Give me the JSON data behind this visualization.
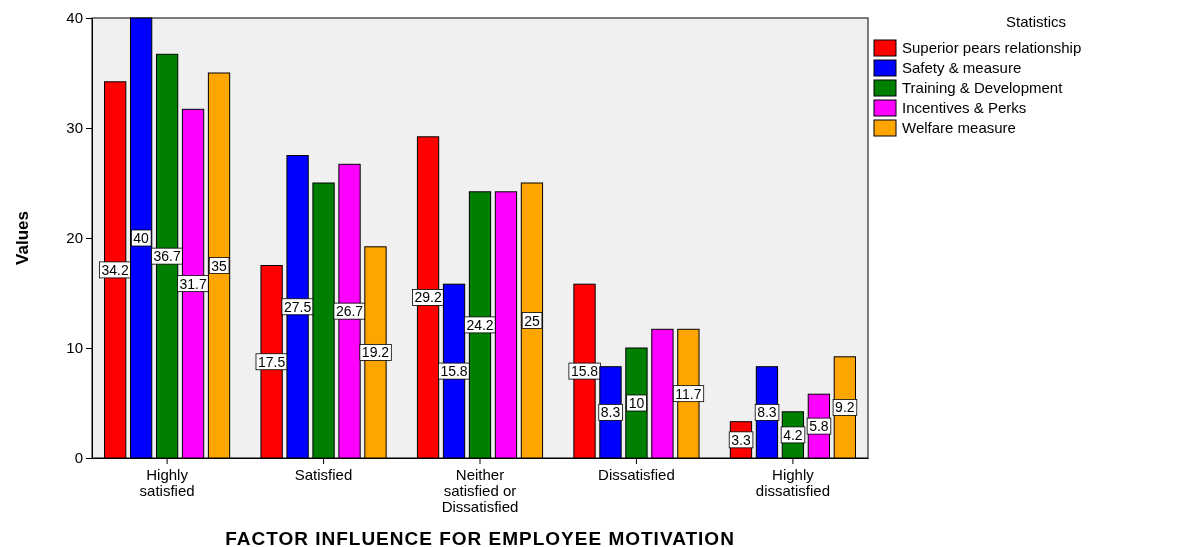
{
  "chart_data": {
    "type": "bar",
    "xlabel": "FACTOR INFLUENCE FOR EMPLOYEE MOTIVATION",
    "ylabel": "Values",
    "legend_title": "Statistics",
    "categories": [
      "Highly satisfied",
      "Satisfied",
      "Neither satisfied or Dissatisfied",
      "Dissatisfied",
      "Highly dissatisfied"
    ],
    "series": [
      {
        "name": "Superior pears relationship",
        "color": "#ff0000",
        "values": [
          34.2,
          17.5,
          29.2,
          15.8,
          3.3
        ],
        "value_labels": [
          "34.2",
          "17.5",
          "29.2",
          "15.8",
          "3.3"
        ]
      },
      {
        "name": "Safety & measure",
        "color": "#0000ff",
        "values": [
          40,
          27.5,
          15.8,
          8.3,
          8.3
        ],
        "value_labels": [
          "40",
          "27.5",
          "15.8",
          "8.3",
          "8.3"
        ]
      },
      {
        "name": "Training & Development",
        "color": "#008000",
        "values": [
          36.7,
          25,
          24.2,
          10,
          4.2
        ],
        "value_labels": [
          "36.7",
          null,
          "24.2",
          "10",
          "4.2"
        ]
      },
      {
        "name": "Incentives & Perks",
        "color": "#ff00ff",
        "values": [
          31.7,
          26.7,
          24.2,
          11.7,
          5.8
        ],
        "value_labels": [
          "31.7",
          "26.7",
          null,
          null,
          "5.8"
        ]
      },
      {
        "name": "Welfare measure",
        "color": "#ffa500",
        "values": [
          35,
          19.2,
          25,
          11.7,
          9.2
        ],
        "value_labels": [
          "35",
          "19.2",
          "25",
          "11.7",
          "9.2"
        ]
      }
    ],
    "ylim": [
      0,
      40
    ],
    "yticks": [
      0,
      10,
      20,
      30,
      40
    ],
    "grid": false,
    "legend": "top right"
  }
}
